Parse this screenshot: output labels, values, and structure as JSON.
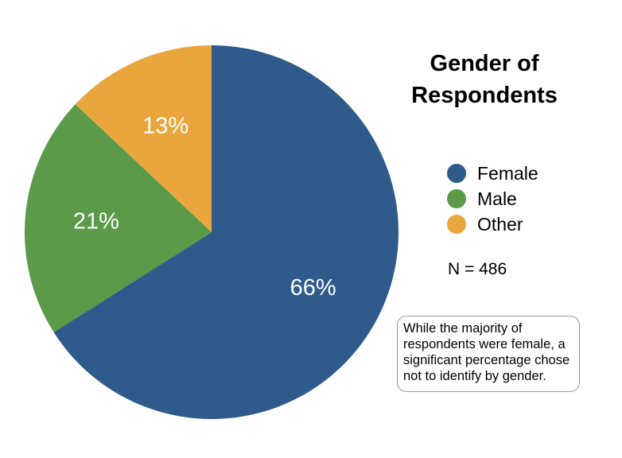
{
  "chart_data": {
    "type": "pie",
    "title_lines": [
      "Gender of",
      "Respondents"
    ],
    "slices": [
      {
        "name": "Female",
        "value": 66,
        "label": "66%",
        "color": "#2e5a8c"
      },
      {
        "name": "Male",
        "value": 21,
        "label": "21%",
        "color": "#5a9a48"
      },
      {
        "name": "Other",
        "value": 13,
        "label": "13%",
        "color": "#e8a63c"
      }
    ],
    "legend_placement": "right",
    "sample_size_label": "N = 486",
    "annotation_lines": [
      "While the majority of",
      "respondents were female, a",
      "significant percentage chose",
      "not to identify by gender."
    ]
  }
}
